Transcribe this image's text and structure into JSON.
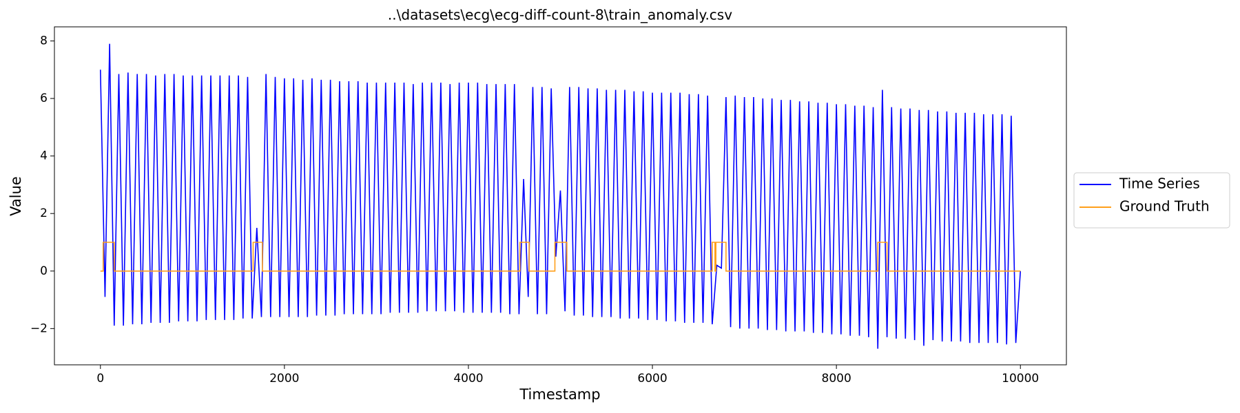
{
  "chart_data": {
    "type": "line",
    "title": "..\\datasets\\ecg\\ecg-diff-count-8\\train_anomaly.csv",
    "x_label": "Timestamp",
    "y_label": "Value",
    "xlim": [
      -500,
      10500
    ],
    "ylim": [
      -3.26,
      8.49
    ],
    "xticks": [
      0,
      2000,
      4000,
      6000,
      8000,
      10000
    ],
    "yticks": [
      {
        "value": -2,
        "label": "−2"
      },
      0,
      2,
      4,
      6,
      8
    ],
    "grid": false,
    "legend": "right",
    "series": [
      {
        "name": "Time Series",
        "color": "#0000ff",
        "x": [
          0,
          50,
          100,
          150,
          200,
          250,
          300,
          350,
          400,
          450,
          500,
          550,
          600,
          650,
          700,
          750,
          800,
          850,
          900,
          950,
          1000,
          1050,
          1100,
          1150,
          1200,
          1250,
          1300,
          1350,
          1400,
          1450,
          1500,
          1550,
          1600,
          1650,
          1700,
          1750,
          1800,
          1850,
          1900,
          1950,
          2000,
          2050,
          2100,
          2150,
          2200,
          2250,
          2300,
          2350,
          2400,
          2450,
          2500,
          2550,
          2600,
          2650,
          2700,
          2750,
          2800,
          2850,
          2900,
          2950,
          3000,
          3050,
          3100,
          3150,
          3200,
          3250,
          3300,
          3350,
          3400,
          3450,
          3500,
          3550,
          3600,
          3650,
          3700,
          3750,
          3800,
          3850,
          3900,
          3950,
          4000,
          4050,
          4100,
          4150,
          4200,
          4250,
          4300,
          4350,
          4400,
          4450,
          4500,
          4550,
          4600,
          4650,
          4700,
          4750,
          4800,
          4850,
          4900,
          4950,
          5000,
          5050,
          5100,
          5150,
          5200,
          5250,
          5300,
          5350,
          5400,
          5450,
          5500,
          5550,
          5600,
          5650,
          5700,
          5750,
          5800,
          5850,
          5900,
          5950,
          6000,
          6050,
          6100,
          6150,
          6200,
          6250,
          6300,
          6350,
          6400,
          6450,
          6500,
          6550,
          6600,
          6650,
          6700,
          6750,
          6800,
          6850,
          6900,
          6950,
          7000,
          7050,
          7100,
          7150,
          7200,
          7250,
          7300,
          7350,
          7400,
          7450,
          7500,
          7550,
          7600,
          7650,
          7700,
          7750,
          7800,
          7850,
          7900,
          7950,
          8000,
          8050,
          8100,
          8150,
          8200,
          8250,
          8300,
          8350,
          8400,
          8450,
          8500,
          8550,
          8600,
          8650,
          8700,
          8750,
          8800,
          8850,
          8900,
          8950,
          9000,
          9050,
          9100,
          9150,
          9200,
          9250,
          9300,
          9350,
          9400,
          9450,
          9500,
          9550,
          9600,
          9650,
          9700,
          9750,
          9800,
          9850,
          9900,
          9950,
          10000
        ],
        "values": [
          7.0,
          -0.9,
          7.9,
          -1.9,
          6.85,
          -1.9,
          6.9,
          -1.85,
          6.85,
          -1.85,
          6.85,
          -1.8,
          6.8,
          -1.8,
          6.85,
          -1.8,
          6.85,
          -1.75,
          6.8,
          -1.75,
          6.8,
          -1.75,
          6.8,
          -1.7,
          6.8,
          -1.7,
          6.8,
          -1.7,
          6.8,
          -1.7,
          6.8,
          -1.65,
          6.75,
          -1.65,
          1.5,
          -1.6,
          6.85,
          -1.6,
          6.75,
          -1.6,
          6.7,
          -1.6,
          6.7,
          -1.6,
          6.65,
          -1.6,
          6.7,
          -1.55,
          6.65,
          -1.55,
          6.65,
          -1.55,
          6.6,
          -1.5,
          6.6,
          -1.5,
          6.6,
          -1.5,
          6.55,
          -1.5,
          6.55,
          -1.5,
          6.55,
          -1.45,
          6.55,
          -1.45,
          6.55,
          -1.45,
          6.5,
          -1.45,
          6.55,
          -1.4,
          6.55,
          -1.4,
          6.55,
          -1.4,
          6.5,
          -1.4,
          6.55,
          -1.45,
          6.55,
          -1.45,
          6.55,
          -1.45,
          6.5,
          -1.45,
          6.5,
          -1.45,
          6.5,
          -1.5,
          6.5,
          -1.5,
          3.2,
          -0.9,
          6.4,
          -1.5,
          6.4,
          -1.5,
          6.35,
          0.5,
          2.8,
          -1.4,
          6.4,
          -1.55,
          6.4,
          -1.55,
          6.35,
          -1.6,
          6.35,
          -1.6,
          6.3,
          -1.6,
          6.3,
          -1.65,
          6.3,
          -1.65,
          6.25,
          -1.65,
          6.25,
          -1.7,
          6.2,
          -1.7,
          6.2,
          -1.75,
          6.2,
          -1.75,
          6.2,
          -1.8,
          6.15,
          -1.8,
          6.15,
          -1.8,
          6.1,
          -1.85,
          0.2,
          0.1,
          6.05,
          -1.95,
          6.1,
          -2.0,
          6.05,
          -2.0,
          6.05,
          -2.0,
          6.0,
          -2.05,
          6.0,
          -2.05,
          5.95,
          -2.1,
          5.95,
          -2.1,
          5.9,
          -2.1,
          5.9,
          -2.15,
          5.85,
          -2.15,
          5.85,
          -2.2,
          5.8,
          -2.2,
          5.8,
          -2.25,
          5.75,
          -2.25,
          5.75,
          -2.3,
          5.7,
          -2.7,
          6.3,
          -2.3,
          5.7,
          -2.35,
          5.65,
          -2.35,
          5.65,
          -2.4,
          5.6,
          -2.6,
          5.6,
          -2.4,
          5.55,
          -2.45,
          5.55,
          -2.45,
          5.5,
          -2.45,
          5.5,
          -2.5,
          5.5,
          -2.5,
          5.45,
          -2.5,
          5.45,
          -2.5,
          5.45,
          -2.55,
          5.4,
          -2.5,
          0.0
        ]
      },
      {
        "name": "Ground Truth",
        "color": "#ff9f1a",
        "x": [
          0,
          30,
          30,
          150,
          150,
          1660,
          1660,
          1760,
          1760,
          4560,
          4560,
          4660,
          4660,
          4940,
          4940,
          5070,
          5070,
          6650,
          6650,
          6680,
          6680,
          6690,
          6690,
          6800,
          6800,
          8450,
          8450,
          8550,
          8550,
          10000
        ],
        "values": [
          0,
          0,
          1,
          1,
          0,
          0,
          1,
          1,
          0,
          0,
          1,
          1,
          0,
          0,
          1,
          1,
          0,
          0,
          1,
          1,
          0,
          0,
          1,
          1,
          0,
          0,
          1,
          1,
          0,
          0
        ]
      }
    ]
  }
}
